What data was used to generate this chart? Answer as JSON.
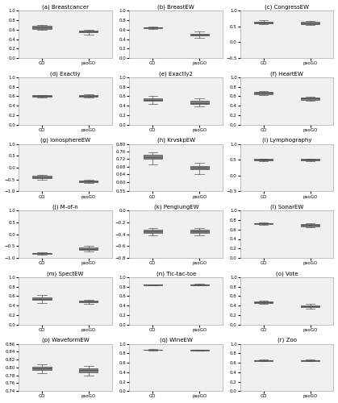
{
  "subplots": [
    {
      "title": "(a) Breastcancer",
      "ylim": [
        0.0,
        1.0
      ],
      "yticks": [
        0.0,
        0.2,
        0.4,
        0.6,
        0.8,
        1.0
      ],
      "GO": {
        "q1": 0.62,
        "median": 0.65,
        "q3": 0.68,
        "whislo": 0.6,
        "whishi": 0.7,
        "fliers": []
      },
      "psoGO": {
        "q1": 0.54,
        "median": 0.56,
        "q3": 0.58,
        "whislo": 0.5,
        "whishi": 0.6,
        "fliers": []
      }
    },
    {
      "title": "(b) BreastEW",
      "ylim": [
        0.0,
        1.0
      ],
      "yticks": [
        0.0,
        0.2,
        0.4,
        0.6,
        0.8,
        1.0
      ],
      "GO": {
        "q1": 0.63,
        "median": 0.64,
        "q3": 0.65,
        "whislo": 0.62,
        "whishi": 0.66,
        "fliers": []
      },
      "psoGO": {
        "q1": 0.47,
        "median": 0.49,
        "q3": 0.52,
        "whislo": 0.42,
        "whishi": 0.56,
        "fliers": []
      }
    },
    {
      "title": "(c) CongressEW",
      "ylim": [
        -0.5,
        1.0
      ],
      "yticks": [
        -0.5,
        0.0,
        0.5,
        1.0
      ],
      "GO": {
        "q1": 0.6,
        "median": 0.63,
        "q3": 0.66,
        "whislo": 0.57,
        "whishi": 0.69,
        "fliers": []
      },
      "psoGO": {
        "q1": 0.58,
        "median": 0.61,
        "q3": 0.64,
        "whislo": 0.54,
        "whishi": 0.67,
        "fliers": []
      }
    },
    {
      "title": "(d) Exactly",
      "ylim": [
        0.0,
        1.0
      ],
      "yticks": [
        0.0,
        0.2,
        0.4,
        0.6,
        0.8,
        1.0
      ],
      "GO": {
        "q1": 0.59,
        "median": 0.61,
        "q3": 0.62,
        "whislo": 0.57,
        "whishi": 0.63,
        "fliers": []
      },
      "psoGO": {
        "q1": 0.59,
        "median": 0.61,
        "q3": 0.63,
        "whislo": 0.57,
        "whishi": 0.65,
        "fliers": []
      }
    },
    {
      "title": "(e) Exactly2",
      "ylim": [
        0.0,
        1.0
      ],
      "yticks": [
        0.0,
        0.2,
        0.4,
        0.6,
        0.8,
        1.0
      ],
      "GO": {
        "q1": 0.5,
        "median": 0.53,
        "q3": 0.56,
        "whislo": 0.44,
        "whishi": 0.6,
        "fliers": []
      },
      "psoGO": {
        "q1": 0.44,
        "median": 0.46,
        "q3": 0.5,
        "whislo": 0.38,
        "whishi": 0.55,
        "fliers": []
      }
    },
    {
      "title": "(f) HeartEW",
      "ylim": [
        0.0,
        1.0
      ],
      "yticks": [
        0.0,
        0.2,
        0.4,
        0.6,
        0.8,
        1.0
      ],
      "GO": {
        "q1": 0.65,
        "median": 0.67,
        "q3": 0.69,
        "whislo": 0.63,
        "whishi": 0.71,
        "fliers": []
      },
      "psoGO": {
        "q1": 0.53,
        "median": 0.55,
        "q3": 0.57,
        "whislo": 0.5,
        "whishi": 0.59,
        "fliers": []
      }
    },
    {
      "title": "(g) IonosphereEW",
      "ylim": [
        -1.0,
        1.0
      ],
      "yticks": [
        -1.0,
        -0.5,
        0.0,
        0.5,
        1.0
      ],
      "GO": {
        "q1": -0.45,
        "median": -0.4,
        "q3": -0.35,
        "whislo": -0.52,
        "whishi": -0.3,
        "fliers": []
      },
      "psoGO": {
        "q1": -0.6,
        "median": -0.57,
        "q3": -0.54,
        "whislo": -0.65,
        "whishi": -0.5,
        "fliers": []
      }
    },
    {
      "title": "(h) KrvskpEW",
      "ylim": [
        0.55,
        0.8
      ],
      "yticks": [
        0.55,
        0.6,
        0.64,
        0.68,
        0.72,
        0.76,
        0.8
      ],
      "GO": {
        "q1": 0.72,
        "median": 0.73,
        "q3": 0.745,
        "whislo": 0.69,
        "whishi": 0.755,
        "fliers": []
      },
      "psoGO": {
        "q1": 0.665,
        "median": 0.675,
        "q3": 0.685,
        "whislo": 0.64,
        "whishi": 0.7,
        "fliers": []
      }
    },
    {
      "title": "(i) Lymphography",
      "ylim": [
        -0.5,
        1.0
      ],
      "yticks": [
        -0.5,
        0.0,
        0.5,
        1.0
      ],
      "GO": {
        "q1": 0.48,
        "median": 0.5,
        "q3": 0.52,
        "whislo": 0.46,
        "whishi": 0.54,
        "fliers": []
      },
      "psoGO": {
        "q1": 0.48,
        "median": 0.5,
        "q3": 0.52,
        "whislo": 0.46,
        "whishi": 0.54,
        "fliers": []
      }
    },
    {
      "title": "(j) M-of-n",
      "ylim": [
        -1.0,
        1.0
      ],
      "yticks": [
        -1.0,
        -0.5,
        0.0,
        0.5,
        1.0
      ],
      "GO": {
        "q1": -0.82,
        "median": -0.8,
        "q3": -0.78,
        "whislo": -0.85,
        "whishi": -0.76,
        "fliers": []
      },
      "psoGO": {
        "q1": -0.65,
        "median": -0.61,
        "q3": -0.57,
        "whislo": -0.72,
        "whishi": -0.5,
        "fliers": []
      }
    },
    {
      "title": "(k) PenglungEW",
      "ylim": [
        -0.8,
        0.0
      ],
      "yticks": [
        -0.8,
        -0.6,
        -0.4,
        -0.2,
        0.0
      ],
      "GO": {
        "q1": -0.38,
        "median": -0.35,
        "q3": -0.32,
        "whislo": -0.42,
        "whishi": -0.29,
        "fliers": []
      },
      "psoGO": {
        "q1": -0.38,
        "median": -0.35,
        "q3": -0.32,
        "whislo": -0.42,
        "whishi": -0.29,
        "fliers": []
      }
    },
    {
      "title": "(l) SonarEW",
      "ylim": [
        0.0,
        1.0
      ],
      "yticks": [
        0.0,
        0.2,
        0.4,
        0.6,
        0.8,
        1.0
      ],
      "GO": {
        "q1": 0.71,
        "median": 0.73,
        "q3": 0.74,
        "whislo": 0.69,
        "whishi": 0.75,
        "fliers": []
      },
      "psoGO": {
        "q1": 0.67,
        "median": 0.69,
        "q3": 0.71,
        "whislo": 0.65,
        "whishi": 0.73,
        "fliers": []
      }
    },
    {
      "title": "(m) SpectEW",
      "ylim": [
        0.0,
        1.0
      ],
      "yticks": [
        0.0,
        0.2,
        0.4,
        0.6,
        0.8,
        1.0
      ],
      "GO": {
        "q1": 0.52,
        "median": 0.54,
        "q3": 0.57,
        "whislo": 0.46,
        "whishi": 0.62,
        "fliers": []
      },
      "psoGO": {
        "q1": 0.47,
        "median": 0.49,
        "q3": 0.51,
        "whislo": 0.44,
        "whishi": 0.53,
        "fliers": []
      }
    },
    {
      "title": "(n) Tic-tac-toe",
      "ylim": [
        0.0,
        1.0
      ],
      "yticks": [
        0.0,
        0.2,
        0.4,
        0.6,
        0.8,
        1.0
      ],
      "GO": {
        "q1": 0.83,
        "median": 0.84,
        "q3": 0.845,
        "whislo": 0.82,
        "whishi": 0.85,
        "fliers": []
      },
      "psoGO": {
        "q1": 0.83,
        "median": 0.84,
        "q3": 0.845,
        "whislo": 0.82,
        "whishi": 0.855,
        "fliers": []
      }
    },
    {
      "title": "(o) Vote",
      "ylim": [
        0.0,
        1.0
      ],
      "yticks": [
        0.0,
        0.2,
        0.4,
        0.6,
        0.8,
        1.0
      ],
      "GO": {
        "q1": 0.45,
        "median": 0.47,
        "q3": 0.49,
        "whislo": 0.43,
        "whishi": 0.51,
        "fliers": []
      },
      "psoGO": {
        "q1": 0.37,
        "median": 0.39,
        "q3": 0.41,
        "whislo": 0.34,
        "whishi": 0.43,
        "fliers": []
      }
    },
    {
      "title": "(p) WaveformEW",
      "ylim": [
        0.74,
        0.86
      ],
      "yticks": [
        0.74,
        0.76,
        0.78,
        0.8,
        0.82,
        0.84,
        0.86
      ],
      "GO": {
        "q1": 0.793,
        "median": 0.797,
        "q3": 0.802,
        "whislo": 0.785,
        "whishi": 0.808,
        "fliers": []
      },
      "psoGO": {
        "q1": 0.788,
        "median": 0.793,
        "q3": 0.798,
        "whislo": 0.78,
        "whishi": 0.804,
        "fliers": []
      }
    },
    {
      "title": "(q) WineEW",
      "ylim": [
        0.0,
        1.0
      ],
      "yticks": [
        0.0,
        0.2,
        0.4,
        0.6,
        0.8,
        1.0
      ],
      "GO": {
        "q1": 0.87,
        "median": 0.875,
        "q3": 0.88,
        "whislo": 0.86,
        "whishi": 0.89,
        "fliers": []
      },
      "psoGO": {
        "q1": 0.86,
        "median": 0.865,
        "q3": 0.87,
        "whislo": 0.855,
        "whishi": 0.875,
        "fliers": []
      }
    },
    {
      "title": "(r) Zoo",
      "ylim": [
        0.0,
        1.0
      ],
      "yticks": [
        0.0,
        0.2,
        0.4,
        0.6,
        0.8,
        1.0
      ],
      "GO": {
        "q1": 0.64,
        "median": 0.65,
        "q3": 0.66,
        "whislo": 0.63,
        "whishi": 0.67,
        "fliers": []
      },
      "psoGO": {
        "q1": 0.64,
        "median": 0.65,
        "q3": 0.66,
        "whislo": 0.63,
        "whishi": 0.67,
        "fliers": []
      }
    }
  ],
  "box_color": "#808080",
  "median_color": "#808080",
  "whisker_color": "#808080",
  "cap_color": "#808080",
  "flier_color": "#808080",
  "bg_color": "#f0f0f0",
  "title_fontsize": 5,
  "tick_fontsize": 4,
  "label_fontsize": 4
}
